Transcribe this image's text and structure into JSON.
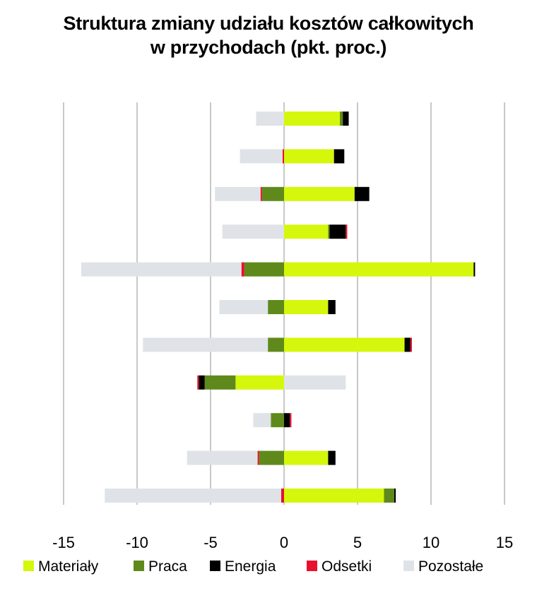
{
  "chart_data": {
    "type": "bar",
    "orientation": "horizontal",
    "stacked": true,
    "title_line1": "Struktura zmiany udziału kosztów całkowitych",
    "title_line2": "w przychodach (pkt. proc.)",
    "xlim": [
      -15,
      15
    ],
    "xticks": [
      -15,
      -10,
      -5,
      0,
      5,
      10,
      15
    ],
    "xtick_labels": [
      "-15",
      "-10",
      "-5",
      "0",
      "5",
      "10",
      "15"
    ],
    "grid": true,
    "legend_position": "bottom",
    "series": [
      {
        "name": "Materiały",
        "color": "#d4f70c",
        "values": [
          3.8,
          3.4,
          4.8,
          3.0,
          12.9,
          3.0,
          8.2,
          -3.3,
          0.0,
          3.0,
          6.8
        ]
      },
      {
        "name": "Praca",
        "color": "#5f8a1b",
        "values": [
          0.2,
          0.0,
          -1.5,
          0.1,
          -2.7,
          -1.1,
          -1.1,
          -2.1,
          -0.9,
          -1.7,
          0.7
        ]
      },
      {
        "name": "Energia",
        "color": "#000000",
        "values": [
          0.4,
          0.7,
          1.0,
          1.1,
          0.1,
          0.5,
          0.4,
          -0.4,
          0.4,
          0.5,
          0.1
        ]
      },
      {
        "name": "Odsetki",
        "color": "#e8102e",
        "values": [
          0.0,
          -0.1,
          -0.1,
          0.1,
          -0.2,
          0.0,
          0.1,
          -0.1,
          0.1,
          -0.1,
          -0.2
        ]
      },
      {
        "name": "Pozostałe",
        "color": "#dfe3e7",
        "values": [
          -1.9,
          -2.9,
          -3.1,
          -4.2,
          -10.9,
          -3.3,
          -8.5,
          4.2,
          -1.2,
          -4.8,
          -12.0
        ]
      }
    ]
  }
}
